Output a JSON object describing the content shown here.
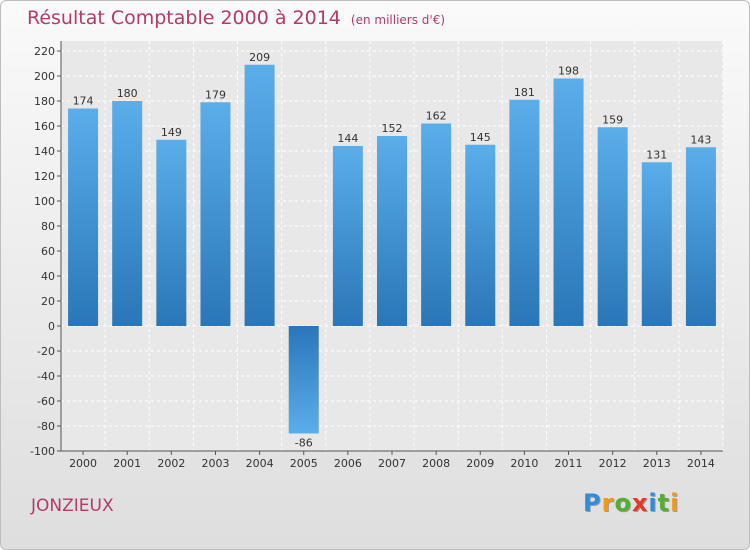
{
  "chart_data": {
    "type": "bar",
    "title": "Résultat Comptable 2000 à 2014",
    "subtitle": "(en milliers d'€)",
    "categories": [
      "2000",
      "2001",
      "2002",
      "2003",
      "2004",
      "2005",
      "2006",
      "2007",
      "2008",
      "2009",
      "2010",
      "2011",
      "2012",
      "2013",
      "2014"
    ],
    "values": [
      174,
      180,
      149,
      179,
      209,
      -86,
      144,
      152,
      162,
      145,
      181,
      198,
      159,
      131,
      143
    ],
    "ylim": [
      -100,
      220
    ],
    "yticks": [
      -100,
      -80,
      -60,
      -40,
      -20,
      0,
      20,
      40,
      60,
      80,
      100,
      120,
      140,
      160,
      180,
      200,
      220
    ],
    "xlabel": "",
    "ylabel": "",
    "grid": true,
    "bar_color": "#3a8fd6"
  },
  "location": "JONZIEUX",
  "brand": {
    "letters": [
      "P",
      "r",
      "o",
      "x",
      "i",
      "t",
      "i"
    ],
    "colors": [
      "#2f8ed8",
      "#f29a17",
      "#55b032",
      "#e8352a",
      "#2f8ed8",
      "#55b032",
      "#f29a17"
    ]
  }
}
